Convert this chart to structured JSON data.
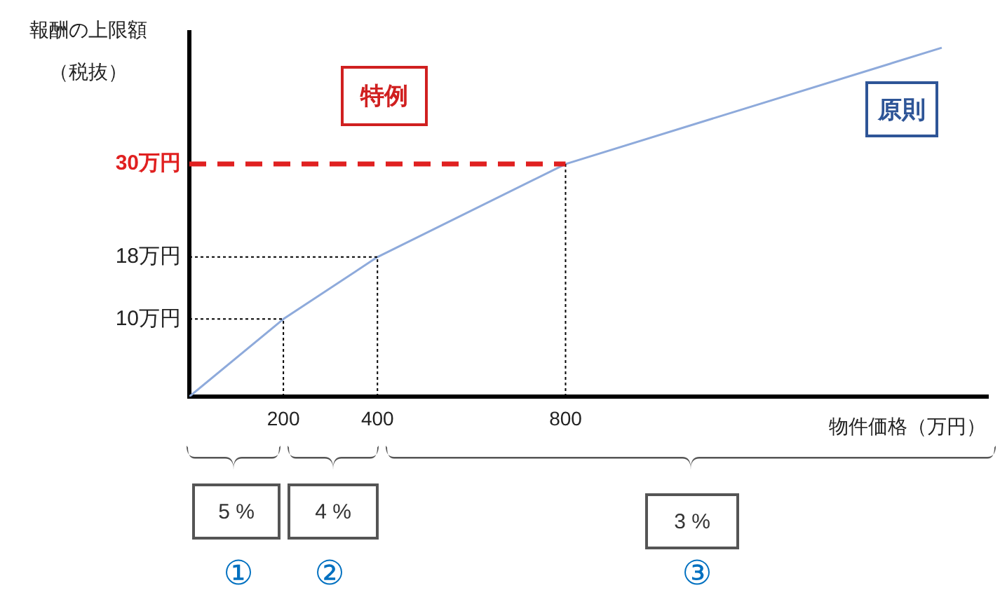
{
  "chart_data": {
    "type": "line",
    "ylabel": "報酬の上限額（税抜）",
    "xlabel": "物件価格（万円）",
    "series": [
      {
        "color": "#8eaadb",
        "x": [
          0,
          200,
          400,
          800,
          1600
        ],
        "values": [
          0,
          10,
          18,
          30,
          45
        ]
      }
    ],
    "xlim": [
      0,
      1700
    ],
    "ylim": [
      0,
      47
    ],
    "xticks": [
      200,
      400,
      800
    ],
    "yticks": [
      {
        "value": 10,
        "label": "10万円"
      },
      {
        "value": 18,
        "label": "18万円"
      },
      {
        "value": 30,
        "label": "30万円"
      }
    ],
    "ref_lines": [
      {
        "axis": "x",
        "value": 200,
        "line_style": "dotted"
      },
      {
        "axis": "x",
        "value": 400,
        "line_style": "dotted"
      },
      {
        "axis": "x",
        "value": 800,
        "line_style": "dotted"
      },
      {
        "axis": "y",
        "value": 10,
        "line_style": "dotted"
      },
      {
        "axis": "y",
        "value": 18,
        "line_style": "dotted"
      },
      {
        "axis": "y",
        "value": 30,
        "line_style": "dashed",
        "color": "#e02020"
      }
    ],
    "annotations": [
      "特例",
      "原則",
      "5 %",
      "4 %",
      "3 %",
      "①",
      "②",
      "③"
    ],
    "grid": false,
    "legend": false,
    "marker": "none",
    "line_style": "solid"
  }
}
